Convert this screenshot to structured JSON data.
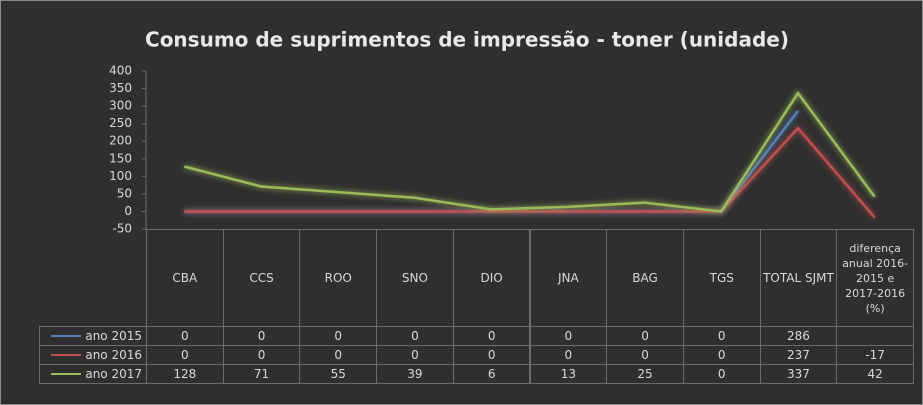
{
  "chart_data": {
    "type": "line",
    "title": "Consumo de suprimentos de impressão - toner (unidade)",
    "categories": [
      "CBA",
      "CCS",
      "ROO",
      "SNO",
      "DIO",
      "JNA",
      "BAG",
      "TGS",
      "TOTAL SJMT",
      "diferença anual 2016-2015 e 2017-2016 (%)"
    ],
    "series": [
      {
        "name": "ano 2015",
        "color": "#4f81bd",
        "values": [
          0,
          0,
          0,
          0,
          0,
          0,
          0,
          0,
          286,
          null
        ]
      },
      {
        "name": "ano 2016",
        "color": "#c0504d",
        "values": [
          0,
          0,
          0,
          0,
          0,
          0,
          0,
          0,
          237,
          -17
        ]
      },
      {
        "name": "ano 2017",
        "color": "#9bbb59",
        "values": [
          128,
          71,
          55,
          39,
          6,
          13,
          25,
          0,
          337,
          42
        ]
      }
    ],
    "ylim": [
      -50,
      400
    ],
    "yticks": [
      -50,
      0,
      50,
      100,
      150,
      200,
      250,
      300,
      350,
      400
    ]
  }
}
